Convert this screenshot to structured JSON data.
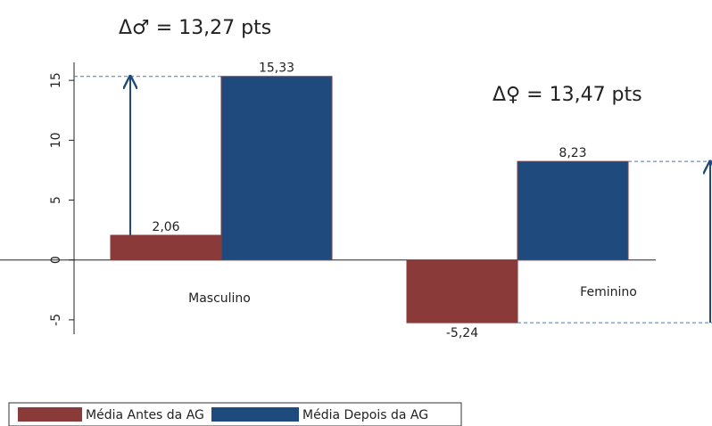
{
  "chart_data": {
    "type": "bar",
    "categories": [
      "Masculino",
      "Feminino"
    ],
    "series": [
      {
        "name": "Média Antes da AG",
        "color": "#8b3a3a",
        "values": [
          2.06,
          -5.24
        ],
        "value_labels": [
          "2,06",
          "-5,24"
        ]
      },
      {
        "name": "Média Depois da AG",
        "color": "#1f4a7d",
        "values": [
          15.33,
          8.23
        ],
        "value_labels": [
          "15,33",
          "8,23"
        ]
      }
    ],
    "annotations": [
      "Δ♂ = 13,27 pts",
      "Δ♀ = 13,47 pts"
    ],
    "ylim": [
      -6.2,
      16.5
    ],
    "yticks": [
      -5,
      0,
      5,
      10,
      15
    ]
  }
}
